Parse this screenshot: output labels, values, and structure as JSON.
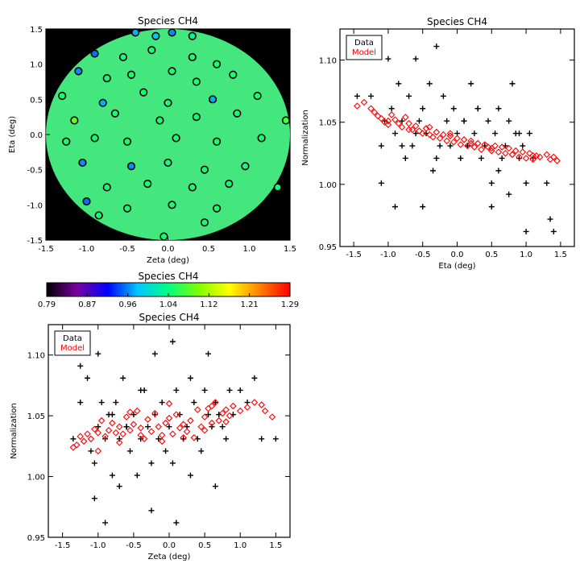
{
  "chart_data": [
    {
      "type": "scatter",
      "subtype": "fov-map",
      "title": "Species CH4",
      "xlabel": "Zeta (deg)",
      "ylabel": "Eta (deg)",
      "xlim": [
        -1.5,
        1.5
      ],
      "ylim": [
        -1.5,
        1.5
      ],
      "xticks": [
        "-1.5",
        "-1.0",
        "-0.5",
        "0.0",
        "0.5",
        "1.0",
        "1.5"
      ],
      "yticks": [
        "-1.5",
        "-1.0",
        "-0.5",
        "0.0",
        "0.5",
        "1.0",
        "1.5"
      ],
      "background_color": "#000000",
      "field_color": "#44e77e",
      "field_radius": 1.5,
      "points": [
        {
          "x": -0.4,
          "y": 1.45,
          "v": 0.97
        },
        {
          "x": -0.15,
          "y": 1.4,
          "v": 0.98
        },
        {
          "x": 0.05,
          "y": 1.45,
          "v": 0.96
        },
        {
          "x": 0.3,
          "y": 1.4,
          "v": 1.03
        },
        {
          "x": -0.9,
          "y": 1.15,
          "v": 0.95
        },
        {
          "x": -0.55,
          "y": 1.1,
          "v": 1.05
        },
        {
          "x": -0.2,
          "y": 1.2,
          "v": 1.05
        },
        {
          "x": 0.3,
          "y": 1.1,
          "v": 1.05
        },
        {
          "x": 0.6,
          "y": 1.0,
          "v": 1.05
        },
        {
          "x": -1.1,
          "y": 0.9,
          "v": 0.96
        },
        {
          "x": -0.75,
          "y": 0.8,
          "v": 1.05
        },
        {
          "x": -0.45,
          "y": 0.85,
          "v": 1.05
        },
        {
          "x": 0.05,
          "y": 0.9,
          "v": 1.05
        },
        {
          "x": 0.35,
          "y": 0.75,
          "v": 1.05
        },
        {
          "x": 0.8,
          "y": 0.85,
          "v": 1.05
        },
        {
          "x": -1.3,
          "y": 0.55,
          "v": 1.05
        },
        {
          "x": -0.8,
          "y": 0.45,
          "v": 0.97
        },
        {
          "x": -0.3,
          "y": 0.6,
          "v": 1.05
        },
        {
          "x": 0.0,
          "y": 0.45,
          "v": 1.05
        },
        {
          "x": 0.55,
          "y": 0.5,
          "v": 0.97
        },
        {
          "x": 1.1,
          "y": 0.55,
          "v": 1.05
        },
        {
          "x": -1.15,
          "y": 0.2,
          "v": 1.09
        },
        {
          "x": -0.65,
          "y": 0.3,
          "v": 1.05
        },
        {
          "x": -0.1,
          "y": 0.2,
          "v": 1.05
        },
        {
          "x": 0.35,
          "y": 0.25,
          "v": 1.05
        },
        {
          "x": 0.85,
          "y": 0.3,
          "v": 1.05
        },
        {
          "x": 1.45,
          "y": 0.2,
          "v": 1.07
        },
        {
          "x": -1.25,
          "y": -0.1,
          "v": 1.05
        },
        {
          "x": -0.9,
          "y": -0.05,
          "v": 1.05
        },
        {
          "x": -0.5,
          "y": -0.1,
          "v": 1.05
        },
        {
          "x": 0.1,
          "y": -0.05,
          "v": 1.05
        },
        {
          "x": 0.6,
          "y": -0.1,
          "v": 1.05
        },
        {
          "x": 1.15,
          "y": -0.05,
          "v": 1.05
        },
        {
          "x": -1.05,
          "y": -0.4,
          "v": 0.96
        },
        {
          "x": -0.45,
          "y": -0.45,
          "v": 0.96
        },
        {
          "x": 0.0,
          "y": -0.4,
          "v": 1.05
        },
        {
          "x": 0.45,
          "y": -0.5,
          "v": 1.05
        },
        {
          "x": 0.95,
          "y": -0.45,
          "v": 1.05
        },
        {
          "x": -0.75,
          "y": -0.75,
          "v": 1.05
        },
        {
          "x": -0.25,
          "y": -0.7,
          "v": 1.05
        },
        {
          "x": 0.3,
          "y": -0.75,
          "v": 1.05
        },
        {
          "x": 0.75,
          "y": -0.7,
          "v": 1.05
        },
        {
          "x": 1.35,
          "y": -0.75,
          "v": 1.05
        },
        {
          "x": -1.0,
          "y": -0.95,
          "v": 0.95
        },
        {
          "x": -0.5,
          "y": -1.05,
          "v": 1.05
        },
        {
          "x": 0.05,
          "y": -1.0,
          "v": 1.05
        },
        {
          "x": 0.6,
          "y": -1.05,
          "v": 1.05
        },
        {
          "x": -0.05,
          "y": -1.45,
          "v": 1.05
        },
        {
          "x": 0.45,
          "y": -1.25,
          "v": 1.05
        },
        {
          "x": -0.85,
          "y": -1.15,
          "v": 1.05
        }
      ]
    },
    {
      "type": "colorbar",
      "title": "Species CH4",
      "range": [
        0.79,
        1.29
      ],
      "ticks": [
        "0.79",
        "0.87",
        "0.96",
        "1.04",
        "1.12",
        "1.21",
        "1.29"
      ],
      "colors": [
        "#000000",
        "#7a00a0",
        "#0000ff",
        "#00c8ff",
        "#00ff80",
        "#80ff00",
        "#ffff00",
        "#ff8000",
        "#ff0000"
      ]
    },
    {
      "type": "scatter",
      "title": "Species CH4",
      "xlabel": "Eta (deg)",
      "ylabel": "Normalization",
      "xlim": [
        -1.7,
        1.7
      ],
      "ylim": [
        0.95,
        1.125
      ],
      "xticks": [
        "-1.5",
        "-1.0",
        "-0.5",
        "0.0",
        "0.5",
        "1.0",
        "1.5"
      ],
      "yticks": [
        "0.95",
        "1.00",
        "1.05",
        "1.10"
      ],
      "legend": {
        "position": "top-left",
        "entries": [
          "Data",
          "Model"
        ]
      },
      "series": [
        {
          "name": "Data",
          "marker": "plus",
          "color": "#000000",
          "x": [
            -1.45,
            -1.25,
            -1.1,
            -1.05,
            -1.0,
            -0.95,
            -0.9,
            -0.85,
            -0.8,
            -0.75,
            -0.7,
            -0.65,
            -0.6,
            -0.55,
            -0.5,
            -0.45,
            -0.4,
            -0.35,
            -0.3,
            -0.25,
            -0.2,
            -0.15,
            -0.1,
            -0.05,
            0.0,
            0.05,
            0.1,
            0.15,
            0.2,
            0.25,
            0.3,
            0.35,
            0.4,
            0.45,
            0.5,
            0.55,
            0.6,
            0.65,
            0.7,
            0.75,
            0.8,
            0.85,
            0.9,
            0.95,
            1.0,
            1.05,
            1.1,
            1.3,
            1.35,
            1.4,
            -1.1,
            -0.8,
            -0.6,
            -0.3,
            0.1,
            0.3,
            0.6,
            0.9,
            1.0,
            -0.9,
            -0.5,
            0.5,
            0.75
          ],
          "y": [
            1.071,
            1.071,
            1.031,
            1.051,
            1.101,
            1.061,
            1.041,
            1.081,
            1.051,
            1.021,
            1.071,
            1.031,
            1.101,
            1.051,
            1.061,
            1.041,
            1.081,
            1.011,
            1.111,
            1.031,
            1.071,
            1.051,
            1.031,
            1.061,
            1.041,
            1.021,
            1.051,
            1.031,
            1.081,
            1.041,
            1.061,
            1.021,
            1.031,
            1.051,
            1.001,
            1.041,
            1.061,
            1.021,
            1.031,
            1.051,
            1.081,
            1.041,
            1.021,
            1.031,
            1.001,
            1.041,
            1.021,
            1.001,
            0.972,
            0.962,
            1.001,
            1.031,
            1.041,
            1.021,
            1.051,
            1.061,
            1.011,
            1.041,
            0.962,
            0.982,
            0.982,
            0.982,
            0.992
          ]
        },
        {
          "name": "Model",
          "marker": "diamond",
          "color": "#ff0000",
          "x": [
            -1.45,
            -1.35,
            -1.25,
            -1.2,
            -1.15,
            -1.1,
            -1.05,
            -1.0,
            -0.95,
            -0.9,
            -0.85,
            -0.8,
            -0.75,
            -0.7,
            -0.65,
            -0.6,
            -0.55,
            -0.5,
            -0.45,
            -0.4,
            -0.35,
            -0.3,
            -0.25,
            -0.2,
            -0.15,
            -0.1,
            -0.05,
            0.0,
            0.05,
            0.1,
            0.15,
            0.2,
            0.25,
            0.3,
            0.35,
            0.4,
            0.45,
            0.5,
            0.55,
            0.6,
            0.65,
            0.7,
            0.75,
            0.8,
            0.85,
            0.9,
            0.95,
            1.0,
            1.05,
            1.1,
            1.15,
            1.2,
            1.3,
            1.35,
            1.4,
            1.45,
            -1.0,
            -0.7,
            -0.4,
            -0.1,
            0.2,
            0.5,
            0.8,
            1.1
          ],
          "y": [
            1.063,
            1.066,
            1.061,
            1.058,
            1.055,
            1.053,
            1.05,
            1.048,
            1.056,
            1.052,
            1.049,
            1.046,
            1.054,
            1.049,
            1.044,
            1.047,
            1.043,
            1.041,
            1.045,
            1.04,
            1.038,
            1.042,
            1.037,
            1.04,
            1.035,
            1.039,
            1.034,
            1.037,
            1.032,
            1.036,
            1.031,
            1.035,
            1.03,
            1.033,
            1.028,
            1.032,
            1.03,
            1.027,
            1.031,
            1.026,
            1.03,
            1.025,
            1.029,
            1.024,
            1.027,
            1.022,
            1.026,
            1.021,
            1.025,
            1.02,
            1.023,
            1.022,
            1.024,
            1.02,
            1.022,
            1.019,
            1.051,
            1.044,
            1.046,
            1.041,
            1.033,
            1.029,
            1.024,
            1.023
          ]
        }
      ]
    },
    {
      "type": "scatter",
      "title": "Species CH4",
      "xlabel": "Zeta (deg)",
      "ylabel": "Normalization",
      "xlim": [
        -1.7,
        1.7
      ],
      "ylim": [
        0.95,
        1.125
      ],
      "xticks": [
        "-1.5",
        "-1.0",
        "-0.5",
        "0.0",
        "0.5",
        "1.0",
        "1.5"
      ],
      "yticks": [
        "0.95",
        "1.00",
        "1.05",
        "1.10"
      ],
      "legend": {
        "position": "top-left",
        "entries": [
          "Data",
          "Model"
        ]
      },
      "series": [
        {
          "name": "Data",
          "marker": "plus",
          "color": "#000000",
          "x": [
            -1.35,
            -1.25,
            -1.15,
            -1.1,
            -1.05,
            -1.0,
            -0.95,
            -0.9,
            -0.85,
            -0.8,
            -0.75,
            -0.7,
            -0.65,
            -0.6,
            -0.55,
            -0.5,
            -0.45,
            -0.4,
            -0.35,
            -0.3,
            -0.25,
            -0.2,
            -0.15,
            -0.1,
            -0.05,
            0.0,
            0.05,
            0.1,
            0.15,
            0.2,
            0.25,
            0.3,
            0.35,
            0.4,
            0.45,
            0.5,
            0.55,
            0.6,
            0.65,
            0.7,
            0.75,
            0.8,
            0.85,
            0.9,
            1.0,
            1.1,
            1.2,
            1.3,
            1.5,
            -1.25,
            -1.0,
            -0.8,
            -0.6,
            -0.4,
            -0.2,
            0.05,
            0.3,
            0.55,
            -0.9,
            -0.7,
            -0.25,
            0.1,
            0.65,
            -1.05
          ],
          "y": [
            1.031,
            1.061,
            1.081,
            1.021,
            1.011,
            1.041,
            1.061,
            1.031,
            1.051,
            1.001,
            1.061,
            1.031,
            1.081,
            1.041,
            1.021,
            1.051,
            1.001,
            1.031,
            1.071,
            1.041,
            1.011,
            1.051,
            1.031,
            1.061,
            1.021,
            1.041,
            1.011,
            1.071,
            1.051,
            1.031,
            1.041,
            1.001,
            1.061,
            1.031,
            1.021,
            1.071,
            1.051,
            1.041,
            1.061,
            1.051,
            1.041,
            1.031,
            1.071,
            1.051,
            1.071,
            1.061,
            1.081,
            1.031,
            1.031,
            1.091,
            1.101,
            1.051,
            1.041,
            1.071,
            1.101,
            1.111,
            1.081,
            1.101,
            0.962,
            0.992,
            0.972,
            0.962,
            0.992,
            0.982
          ]
        },
        {
          "name": "Model",
          "marker": "diamond",
          "color": "#ff0000",
          "x": [
            -1.35,
            -1.3,
            -1.25,
            -1.2,
            -1.15,
            -1.1,
            -1.05,
            -1.0,
            -0.95,
            -0.9,
            -0.85,
            -0.8,
            -0.75,
            -0.7,
            -0.65,
            -0.6,
            -0.55,
            -0.5,
            -0.45,
            -0.4,
            -0.35,
            -0.3,
            -0.25,
            -0.2,
            -0.15,
            -0.1,
            -0.05,
            0.0,
            0.05,
            0.1,
            0.15,
            0.2,
            0.25,
            0.3,
            0.35,
            0.4,
            0.45,
            0.5,
            0.55,
            0.6,
            0.65,
            0.7,
            0.75,
            0.8,
            0.85,
            0.9,
            1.0,
            1.1,
            1.2,
            1.3,
            1.35,
            1.45,
            -1.0,
            -0.7,
            -0.4,
            -0.1,
            0.2,
            0.5,
            0.8,
            -0.55,
            0.0,
            0.6
          ],
          "y": [
            1.024,
            1.026,
            1.033,
            1.029,
            1.035,
            1.031,
            1.039,
            1.036,
            1.046,
            1.033,
            1.038,
            1.044,
            1.036,
            1.041,
            1.035,
            1.049,
            1.038,
            1.043,
            1.054,
            1.04,
            1.031,
            1.047,
            1.037,
            1.052,
            1.041,
            1.034,
            1.044,
            1.048,
            1.035,
            1.051,
            1.04,
            1.043,
            1.037,
            1.046,
            1.032,
            1.055,
            1.041,
            1.049,
            1.056,
            1.044,
            1.061,
            1.046,
            1.052,
            1.055,
            1.05,
            1.058,
            1.054,
            1.057,
            1.061,
            1.059,
            1.054,
            1.049,
            1.021,
            1.028,
            1.034,
            1.029,
            1.032,
            1.038,
            1.045,
            1.053,
            1.06,
            1.058
          ]
        }
      ]
    }
  ]
}
